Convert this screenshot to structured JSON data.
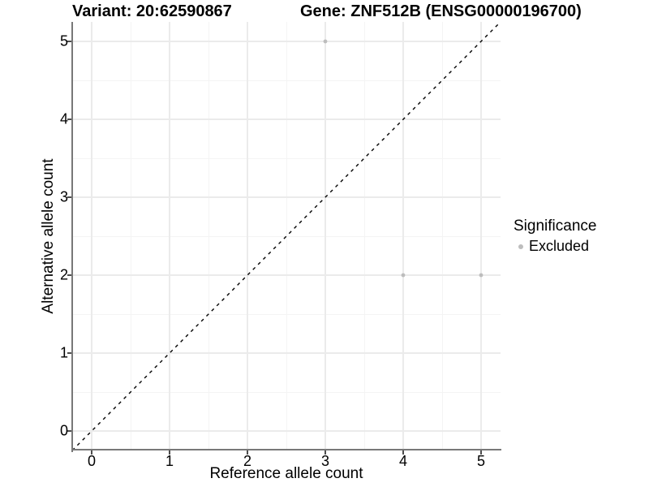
{
  "titles": {
    "variant": "Variant: 20:62590867",
    "gene": "Gene: ZNF512B (ENSG00000196700)"
  },
  "chart_data": {
    "type": "scatter",
    "title": "Variant: 20:62590867   Gene: ZNF512B (ENSG00000196700)",
    "xlabel": "Reference allele count",
    "ylabel": "Alternative allele count",
    "xlim": [
      -0.25,
      5.25
    ],
    "ylim": [
      -0.25,
      5.25
    ],
    "x_ticks": [
      0,
      1,
      2,
      3,
      4,
      5
    ],
    "y_ticks": [
      0,
      1,
      2,
      3,
      4,
      5
    ],
    "grid": "major-and-minor",
    "series": [
      {
        "name": "Excluded",
        "color": "#bdbdbd",
        "points": [
          {
            "x": 3,
            "y": 5
          },
          {
            "x": 4,
            "y": 2
          },
          {
            "x": 5,
            "y": 2
          }
        ]
      }
    ],
    "reference_line": {
      "kind": "abline",
      "slope": 1,
      "intercept": 0,
      "style": "dashed",
      "color": "#000000"
    },
    "legend": {
      "position": "right",
      "title": "Significance",
      "entries": [
        {
          "label": "Excluded",
          "color": "#bdbdbd"
        }
      ]
    }
  },
  "colors": {
    "point": "#bdbdbd",
    "axis_line": "#787878",
    "tick_mark": "#4d4d4d",
    "grid_major": "#ebebeb",
    "grid_minor": "#f4f4f4",
    "dashed_line": "#000000",
    "background": "#ffffff"
  }
}
